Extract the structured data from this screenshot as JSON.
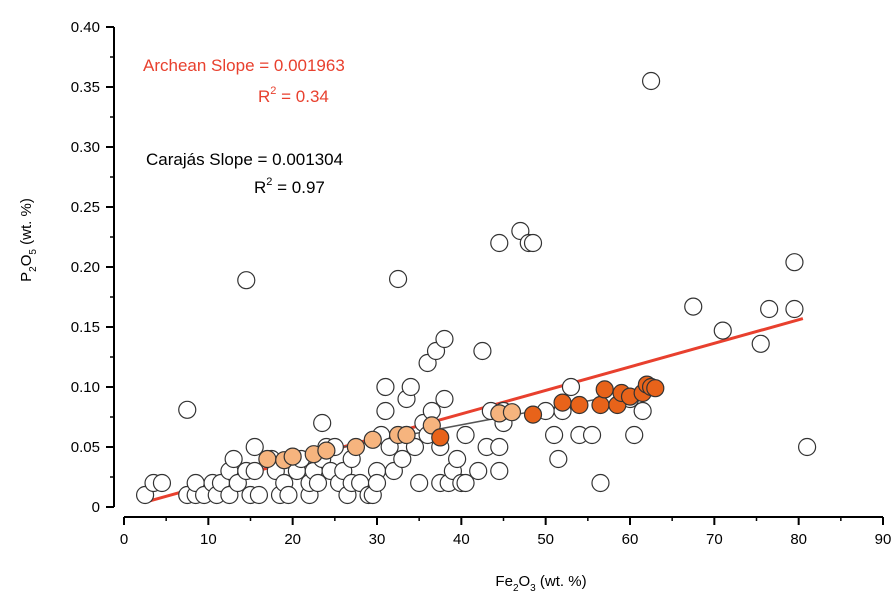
{
  "chart_data": {
    "type": "scatter",
    "xlabel": {
      "main": "Fe",
      "sub1": "2",
      "mid": "O",
      "sub2": "3",
      "tail": " (wt. %)"
    },
    "ylabel": {
      "main": "P",
      "sub1": "2",
      "mid": "O",
      "sub2": "5",
      "tail": " (wt. %)"
    },
    "xlim": [
      0,
      90
    ],
    "ylim": [
      0,
      0.4
    ],
    "xticks": [
      0,
      10,
      20,
      30,
      40,
      50,
      60,
      70,
      80,
      90
    ],
    "yticks": [
      0,
      0.05,
      0.1,
      0.15,
      0.2,
      0.25,
      0.3,
      0.35,
      0.4
    ],
    "ytick_labels": [
      "0",
      "0.05",
      "0.10",
      "0.15",
      "0.20",
      "0.25",
      "0.30",
      "0.35",
      "0.40"
    ],
    "grid": false,
    "colors": {
      "archean_line": "#e8402e",
      "carajas_line": "#555555",
      "archean_points": "#ffffff",
      "carajas_points_light": "#f6b47e",
      "carajas_points_dark": "#e8631a",
      "marker_edge": "#333333"
    },
    "annotations": {
      "archean_slope": "Archean Slope = 0.001963",
      "archean_r2_prefix": "R",
      "archean_r2_sup": "2",
      "archean_r2_value": " = 0.34",
      "carajas_slope": "Carajás Slope = 0.001304",
      "carajas_r2_prefix": "R",
      "carajas_r2_sup": "2",
      "carajas_r2_value": " = 0.97"
    },
    "lines": [
      {
        "series": "Archean",
        "x": [
          2.5,
          80.5
        ],
        "y": [
          0.004,
          0.157
        ]
      },
      {
        "series": "Carajás",
        "x": [
          17,
          63
        ],
        "y": [
          0.038,
          0.099
        ]
      }
    ],
    "series": [
      {
        "series": "Archean",
        "marker": "open-circle",
        "points": [
          [
            2.5,
            0.01
          ],
          [
            3.5,
            0.02
          ],
          [
            4.5,
            0.02
          ],
          [
            7.5,
            0.01
          ],
          [
            7.5,
            0.081
          ],
          [
            8.5,
            0.01
          ],
          [
            8.5,
            0.02
          ],
          [
            9.5,
            0.01
          ],
          [
            10.5,
            0.02
          ],
          [
            11,
            0.01
          ],
          [
            11.5,
            0.02
          ],
          [
            12.5,
            0.01
          ],
          [
            12.5,
            0.03
          ],
          [
            13,
            0.04
          ],
          [
            13.5,
            0.02
          ],
          [
            14.5,
            0.189
          ],
          [
            14.5,
            0.03
          ],
          [
            15,
            0.01
          ],
          [
            15.5,
            0.05
          ],
          [
            15.5,
            0.03
          ],
          [
            16,
            0.01
          ],
          [
            17.5,
            0.04
          ],
          [
            18,
            0.03
          ],
          [
            18.5,
            0.01
          ],
          [
            19,
            0.02
          ],
          [
            19.5,
            0.01
          ],
          [
            20.5,
            0.03
          ],
          [
            21,
            0.04
          ],
          [
            22,
            0.01
          ],
          [
            22,
            0.02
          ],
          [
            22.5,
            0.03
          ],
          [
            23,
            0.02
          ],
          [
            23.5,
            0.07
          ],
          [
            23.5,
            0.04
          ],
          [
            24,
            0.05
          ],
          [
            24.5,
            0.03
          ],
          [
            25,
            0.05
          ],
          [
            25.5,
            0.02
          ],
          [
            26,
            0.03
          ],
          [
            26.5,
            0.01
          ],
          [
            27,
            0.02
          ],
          [
            27,
            0.04
          ],
          [
            28,
            0.02
          ],
          [
            29,
            0.01
          ],
          [
            29.5,
            0.01
          ],
          [
            30,
            0.03
          ],
          [
            30,
            0.02
          ],
          [
            30.5,
            0.06
          ],
          [
            31,
            0.08
          ],
          [
            31,
            0.1
          ],
          [
            31.5,
            0.05
          ],
          [
            32,
            0.03
          ],
          [
            32.5,
            0.19
          ],
          [
            33,
            0.04
          ],
          [
            33.5,
            0.06
          ],
          [
            33.5,
            0.09
          ],
          [
            34,
            0.1
          ],
          [
            34.5,
            0.05
          ],
          [
            35,
            0.02
          ],
          [
            35.5,
            0.07
          ],
          [
            36,
            0.06
          ],
          [
            36,
            0.12
          ],
          [
            36.5,
            0.08
          ],
          [
            37,
            0.13
          ],
          [
            37.5,
            0.02
          ],
          [
            37.5,
            0.05
          ],
          [
            38,
            0.14
          ],
          [
            38,
            0.09
          ],
          [
            38.5,
            0.02
          ],
          [
            39,
            0.03
          ],
          [
            39.5,
            0.04
          ],
          [
            40,
            0.02
          ],
          [
            40.5,
            0.06
          ],
          [
            40.5,
            0.02
          ],
          [
            42,
            0.03
          ],
          [
            42.5,
            0.13
          ],
          [
            43,
            0.05
          ],
          [
            43.5,
            0.08
          ],
          [
            44.5,
            0.03
          ],
          [
            44.5,
            0.05
          ],
          [
            44.5,
            0.22
          ],
          [
            45,
            0.07
          ],
          [
            45,
            0.08
          ],
          [
            47,
            0.23
          ],
          [
            48,
            0.22
          ],
          [
            48.5,
            0.22
          ],
          [
            50,
            0.08
          ],
          [
            51,
            0.06
          ],
          [
            51.5,
            0.04
          ],
          [
            52,
            0.08
          ],
          [
            53,
            0.1
          ],
          [
            54,
            0.06
          ],
          [
            55.5,
            0.06
          ],
          [
            56.5,
            0.02
          ],
          [
            58,
            0.09
          ],
          [
            60,
            0.09
          ],
          [
            60.5,
            0.06
          ],
          [
            61.5,
            0.08
          ],
          [
            62.5,
            0.355
          ],
          [
            67.5,
            0.167
          ],
          [
            71,
            0.147
          ],
          [
            75.5,
            0.136
          ],
          [
            76.5,
            0.165
          ],
          [
            79.5,
            0.204
          ],
          [
            79.5,
            0.165
          ],
          [
            81,
            0.05
          ]
        ]
      },
      {
        "series": "Carajás",
        "marker": "filled-circle",
        "points": [
          [
            17,
            0.04,
            "light"
          ],
          [
            19,
            0.039,
            "light"
          ],
          [
            20,
            0.042,
            "light"
          ],
          [
            22.5,
            0.044,
            "light"
          ],
          [
            24,
            0.047,
            "light"
          ],
          [
            27.5,
            0.05,
            "light"
          ],
          [
            29.5,
            0.056,
            "light"
          ],
          [
            32.5,
            0.06,
            "light"
          ],
          [
            33.5,
            0.06,
            "light"
          ],
          [
            36.5,
            0.068,
            "light"
          ],
          [
            44.5,
            0.078,
            "light"
          ],
          [
            46,
            0.079,
            "light"
          ],
          [
            37.5,
            0.058,
            "dark"
          ],
          [
            48.5,
            0.077,
            "dark"
          ],
          [
            52,
            0.087,
            "dark"
          ],
          [
            54,
            0.085,
            "dark"
          ],
          [
            56.5,
            0.085,
            "dark"
          ],
          [
            57,
            0.098,
            "dark"
          ],
          [
            58.5,
            0.085,
            "dark"
          ],
          [
            59,
            0.095,
            "dark"
          ],
          [
            60,
            0.092,
            "dark"
          ],
          [
            61.5,
            0.095,
            "dark"
          ],
          [
            62,
            0.102,
            "dark"
          ],
          [
            62.5,
            0.1,
            "dark"
          ],
          [
            63,
            0.099,
            "dark"
          ]
        ]
      }
    ]
  }
}
